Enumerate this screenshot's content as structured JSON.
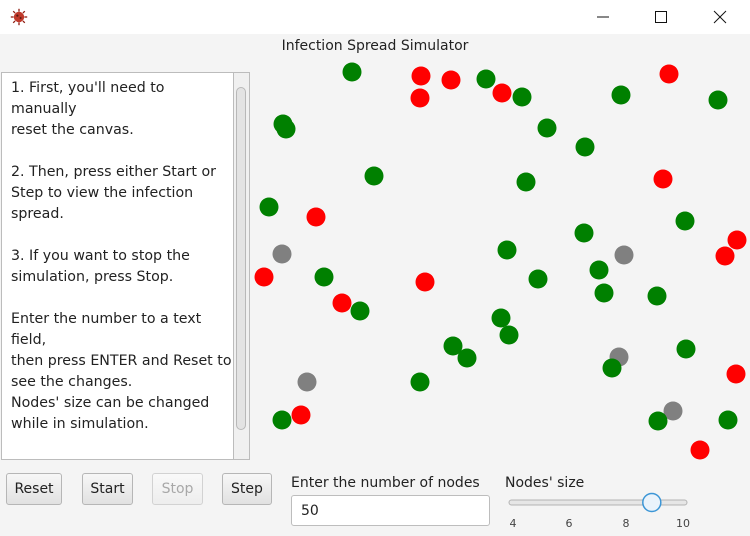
{
  "window": {
    "app_icon": "virus-icon",
    "controls": [
      "minimize-icon",
      "maximize-icon",
      "close-icon"
    ]
  },
  "app_title": "Infection Spread Simulator",
  "instructions": {
    "text": "1. First, you'll need to manually\nreset the canvas.\n\n2. Then, press either Start or\nStep to view the infection\nspread.\n\n3. If you want to stop the\nsimulation, press Stop.\n\nEnter the number to a text field,\nthen press ENTER and Reset to\nsee the changes.\nNodes' size can be changed\nwhile in simulation.\n\nGray -- healthy\nRed -- infected"
  },
  "buttons": {
    "reset": "Reset",
    "start": "Start",
    "stop": "Stop",
    "step": "Step"
  },
  "nodes_field": {
    "label": "Enter the number of nodes",
    "value": "50"
  },
  "size_slider": {
    "label": "Nodes' size",
    "min": 4,
    "max": 10,
    "value": 8.9,
    "ticks": [
      "4",
      "6",
      "8",
      "10"
    ]
  },
  "colors": {
    "healthy": "#808080",
    "infected": "#ff0000",
    "recovered": "#008000",
    "slider_thumb": "#3c96d6"
  }
}
